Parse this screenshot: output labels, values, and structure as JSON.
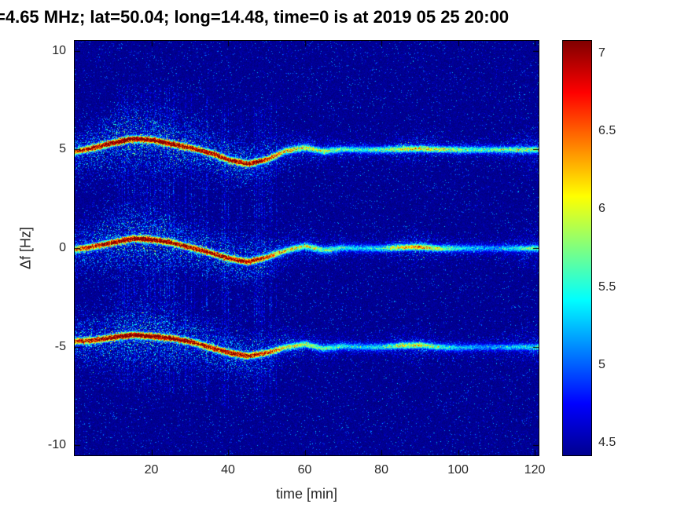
{
  "title": "=4.65 MHz;  lat=50.04; long=14.48, time=0 is at 2019 05 25 20:00",
  "chart_data": {
    "type": "heatmap",
    "subtype": "doppler-shift-spectrogram",
    "title": "=4.65 MHz;  lat=50.04; long=14.48, time=0 is at 2019 05 25 20:00",
    "xlabel": "time [min]",
    "ylabel": "Δf [Hz]",
    "xlim": [
      0,
      121
    ],
    "ylim": [
      -10.5,
      10.5
    ],
    "x_ticks": [
      20,
      40,
      60,
      80,
      100,
      120
    ],
    "y_ticks": [
      10,
      5,
      0,
      -5,
      -10
    ],
    "grid": false,
    "background_level": 4.42,
    "color_range": [
      4.42,
      7.08
    ],
    "colorbar": {
      "colormap": "jet",
      "ticks": [
        7,
        6.5,
        6,
        5.5,
        5,
        4.5
      ],
      "gradient": [
        {
          "pos": 0.0,
          "color": "#00008f"
        },
        {
          "pos": 0.125,
          "color": "#0000ff"
        },
        {
          "pos": 0.375,
          "color": "#00ffff"
        },
        {
          "pos": 0.625,
          "color": "#ffff00"
        },
        {
          "pos": 0.875,
          "color": "#ff0000"
        },
        {
          "pos": 1.0,
          "color": "#800000"
        }
      ]
    },
    "trace_t": [
      0,
      5,
      10,
      15,
      20,
      25,
      30,
      35,
      40,
      45,
      50,
      55,
      60,
      65,
      70,
      75,
      80,
      85,
      90,
      95,
      100,
      105,
      110,
      115,
      120
    ],
    "trace_width_hz": [
      0.7,
      0.85,
      1.0,
      1.1,
      1.05,
      0.95,
      0.85,
      0.8,
      0.75,
      0.75,
      0.7,
      0.5,
      0.45,
      0.4,
      0.35,
      0.3,
      0.3,
      0.4,
      0.45,
      0.35,
      0.3,
      0.3,
      0.3,
      0.45,
      0.6
    ],
    "bands": [
      {
        "center": 5,
        "deviation": [
          -0.1,
          0.1,
          0.35,
          0.55,
          0.5,
          0.3,
          0.1,
          -0.15,
          -0.5,
          -0.72,
          -0.5,
          -0.05,
          0.1,
          -0.08,
          0.02,
          0,
          0,
          0.03,
          0.05,
          0.02,
          0,
          0,
          0,
          0,
          0
        ],
        "amplitude": [
          0.75,
          0.9,
          1.0,
          1.0,
          1.0,
          0.95,
          0.92,
          0.88,
          0.9,
          0.88,
          0.75,
          0.55,
          0.5,
          0.42,
          0.35,
          0.3,
          0.35,
          0.5,
          0.52,
          0.45,
          0.4,
          0.35,
          0.35,
          0.4,
          0.45
        ]
      },
      {
        "center": 0,
        "deviation": [
          -0.05,
          0.1,
          0.3,
          0.5,
          0.45,
          0.3,
          0.05,
          -0.2,
          -0.5,
          -0.68,
          -0.45,
          -0.1,
          0.12,
          -0.1,
          0.03,
          0,
          0,
          0.05,
          0.08,
          0,
          0,
          0,
          0,
          0,
          0
        ],
        "amplitude": [
          0.7,
          0.85,
          0.95,
          1.0,
          1.0,
          0.92,
          0.9,
          0.85,
          0.9,
          0.88,
          0.72,
          0.5,
          0.48,
          0.4,
          0.3,
          0.25,
          0.3,
          0.55,
          0.6,
          0.42,
          0.3,
          0.22,
          0.2,
          0.3,
          0.38
        ]
      },
      {
        "center": -5,
        "deviation": [
          0.3,
          0.35,
          0.5,
          0.62,
          0.55,
          0.45,
          0.28,
          0,
          -0.28,
          -0.45,
          -0.3,
          0,
          0.15,
          -0.08,
          0.05,
          0,
          0,
          0.08,
          0.1,
          0,
          -0.03,
          0,
          0,
          0,
          0
        ],
        "amplitude": [
          0.78,
          0.88,
          0.95,
          1.0,
          1.0,
          0.95,
          0.9,
          0.85,
          0.88,
          0.85,
          0.7,
          0.5,
          0.45,
          0.38,
          0.3,
          0.25,
          0.3,
          0.45,
          0.5,
          0.35,
          0.25,
          0.2,
          0.2,
          0.25,
          0.3
        ]
      }
    ],
    "stripe_artifacts": {
      "t_range": [
        10,
        53
      ],
      "density": 0.3
    }
  }
}
